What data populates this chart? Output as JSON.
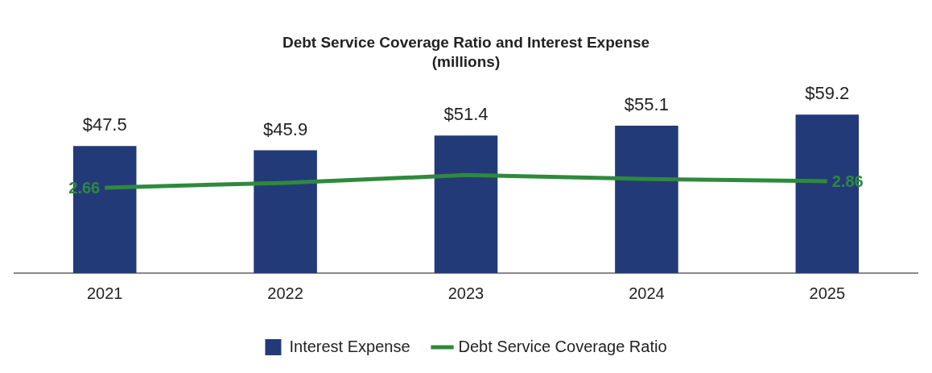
{
  "chart_data": {
    "type": "bar",
    "title": "Debt Service Coverage Ratio and Interest Expense",
    "subtitle": "(millions)",
    "categories": [
      "2021",
      "2022",
      "2023",
      "2024",
      "2025"
    ],
    "series": [
      {
        "name": "Interest Expense",
        "type": "bar",
        "color": "#233a78",
        "values": [
          47.5,
          45.9,
          51.4,
          55.1,
          59.2
        ],
        "value_labels": [
          "$47.5",
          "$45.9",
          "$51.4",
          "$55.1",
          "$59.2"
        ]
      },
      {
        "name": "Debt Service Coverage Ratio",
        "type": "line",
        "axis": "y2",
        "color": "#2e8a3c",
        "values": [
          2.66,
          2.81,
          3.05,
          2.93,
          2.86
        ],
        "value_labels": [
          "2.66",
          null,
          null,
          null,
          "2.86"
        ]
      }
    ],
    "tick_labels": "x",
    "grid": false,
    "legend": "bottom",
    "marker": "none",
    "line_style": "solid"
  }
}
